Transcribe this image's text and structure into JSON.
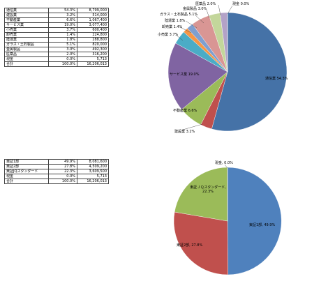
{
  "table1": {
    "rows": [
      {
        "name": "通信業",
        "pct": "54.3%",
        "value": "8,799,000"
      },
      {
        "name": "建設業",
        "pct": "3.2%",
        "value": "514,000"
      },
      {
        "name": "不動産業",
        "pct": "6.6%",
        "value": "1,067,400"
      },
      {
        "name": "サービス業",
        "pct": "19.0%",
        "value": "3,077,400"
      },
      {
        "name": "小売業",
        "pct": "3.7%",
        "value": "600,400"
      },
      {
        "name": "卸売業",
        "pct": "1.4%",
        "value": "224,800"
      },
      {
        "name": "陸運業",
        "pct": "1.8%",
        "value": "288,800"
      },
      {
        "name": "ガラス・土石製品",
        "pct": "5.1%",
        "value": "820,000"
      },
      {
        "name": "金属製品",
        "pct": "3.0%",
        "value": "492,300"
      },
      {
        "name": "医薬品",
        "pct": "2.0%",
        "value": "316,200"
      },
      {
        "name": "現金",
        "pct": "0.0%",
        "value": "5,713"
      },
      {
        "name": "合計",
        "pct": "100.0%",
        "value": "16,206,013"
      }
    ]
  },
  "table2": {
    "rows": [
      {
        "name": "東証1部",
        "pct": "49.9%",
        "value": "8,081,600"
      },
      {
        "name": "東証2部",
        "pct": "27.8%",
        "value": "4,509,200"
      },
      {
        "name": "東証JQスタンダード",
        "pct": "22.3%",
        "value": "3,609,500"
      },
      {
        "name": "現金",
        "pct": "0.0%",
        "value": "5,713"
      },
      {
        "name": "合計",
        "pct": "100.0%",
        "value": "16,206,013"
      }
    ]
  },
  "chart_data": [
    {
      "type": "pie",
      "labels": [
        "通信業 54.3%",
        "建設業 3.2%",
        "不動産業 6.6%",
        "サービス業 19.0%",
        "小売業 3.7%",
        "卸売業 1.4%",
        "陸運業 1.8%",
        "ガラス・土石製品 5.1%",
        "金属製品 3.0%",
        "医薬品 2.0%",
        "現金 0.0%"
      ],
      "values": [
        8799000,
        514000,
        1067400,
        3077400,
        600400,
        224800,
        288800,
        820000,
        492300,
        316200,
        5713
      ],
      "colors": [
        "#4572a7",
        "#c0504d",
        "#9bbb59",
        "#8064a2",
        "#4bacc6",
        "#f79646",
        "#7f9fd0",
        "#d99694",
        "#c3d69b",
        "#b3a2c7",
        "#93cddd"
      ]
    },
    {
      "type": "pie",
      "labels": [
        "東証1部, 49.9%",
        "東証2部, 27.8%",
        "東証ＪＱスタンダード, 22.3%",
        "現金, 0.0%"
      ],
      "values": [
        8081600,
        4509200,
        3609500,
        5713
      ],
      "colors": [
        "#4f81bd",
        "#c0504d",
        "#9bbb59",
        "#8064a2"
      ]
    }
  ]
}
